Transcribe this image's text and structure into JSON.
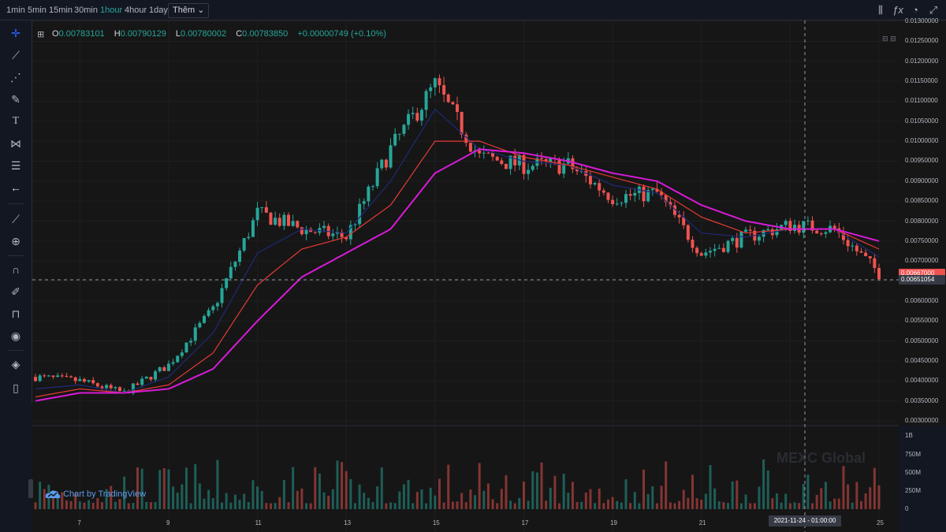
{
  "toolbar": {
    "intervals": [
      "1min",
      "5min",
      "15min",
      "30min",
      "1hour",
      "4hour",
      "1day"
    ],
    "active_interval": "1hour",
    "more_label": "Thêm"
  },
  "ohlc": {
    "o_key": "O",
    "o": "0.00783101",
    "h_key": "H",
    "h": "0.00790129",
    "l_key": "L",
    "l": "0.00780002",
    "c_key": "C",
    "c": "0.00783850",
    "change": "+0.00000749 (+0.10%)"
  },
  "price_axis": {
    "labels": [
      "0.01300000",
      "0.01250000",
      "0.01200000",
      "0.01150000",
      "0.01100000",
      "0.01050000",
      "0.01000000",
      "0.00950000",
      "0.00900000",
      "0.00850000",
      "0.00800000",
      "0.00750000",
      "0.00700000",
      "0.00650000",
      "0.00600000",
      "0.00550000",
      "0.00500000",
      "0.00450000",
      "0.00400000",
      "0.00350000",
      "0.00300000"
    ],
    "current_price": "0.00667000",
    "crosshair_price": "0.00651054"
  },
  "volume_axis": {
    "labels": [
      "1B",
      "750M",
      "500M",
      "250M",
      "0"
    ]
  },
  "time_axis": {
    "labels": [
      "7",
      "9",
      "11",
      "13",
      "15",
      "17",
      "19",
      "21",
      "23",
      "25"
    ],
    "crosshair_date": "2021-11-24 - 01:00:00"
  },
  "branding": {
    "tradingview": "Chart by TradingView",
    "watermark": "MEXC Global"
  },
  "colors": {
    "up": "#26a69a",
    "down": "#ef5350",
    "ma_fast": "#1e2a78",
    "ma_mid": "#e53935",
    "ma_slow": "#d81bd8",
    "background": "#161616"
  },
  "icons": [
    "crosshair-icon",
    "trend-line-icon",
    "fib-icon",
    "brush-icon",
    "text-icon",
    "pattern-icon",
    "measure-icon",
    "back-arrow-icon",
    "ruler-icon",
    "zoom-in-icon",
    "magnet-icon",
    "lock-drawings-icon",
    "lock-icon",
    "eye-icon",
    "layers-icon",
    "trash-icon"
  ],
  "chart_data": {
    "type": "candlestick",
    "x": [
      "2021-11-06",
      "2021-11-07",
      "2021-11-08",
      "2021-11-09",
      "2021-11-10",
      "2021-11-11",
      "2021-11-12",
      "2021-11-13",
      "2021-11-14",
      "2021-11-15",
      "2021-11-16",
      "2021-11-17",
      "2021-11-18",
      "2021-11-19",
      "2021-11-20",
      "2021-11-21",
      "2021-11-22",
      "2021-11-23",
      "2021-11-24",
      "2021-11-25"
    ],
    "close": [
      0.0041,
      0.004,
      0.0037,
      0.0044,
      0.0058,
      0.0082,
      0.0078,
      0.0076,
      0.0098,
      0.0114,
      0.0096,
      0.0094,
      0.0094,
      0.0086,
      0.0087,
      0.0072,
      0.0076,
      0.0079,
      0.0078,
      0.0067
    ],
    "ma_fast": [
      0.0038,
      0.0039,
      0.0037,
      0.0041,
      0.0052,
      0.0072,
      0.0078,
      0.0077,
      0.009,
      0.0108,
      0.0098,
      0.0095,
      0.0094,
      0.0089,
      0.0087,
      0.0077,
      0.0076,
      0.0078,
      0.0078,
      0.0071
    ],
    "ma_mid": [
      0.0036,
      0.0038,
      0.0037,
      0.0039,
      0.0047,
      0.0064,
      0.0073,
      0.0076,
      0.0084,
      0.01,
      0.01,
      0.0096,
      0.0094,
      0.0091,
      0.0088,
      0.0081,
      0.0077,
      0.0078,
      0.0078,
      0.0073
    ],
    "ma_slow": [
      0.0035,
      0.0037,
      0.0037,
      0.0038,
      0.0043,
      0.0055,
      0.0066,
      0.0072,
      0.0078,
      0.0092,
      0.0098,
      0.0097,
      0.0095,
      0.0092,
      0.009,
      0.0084,
      0.008,
      0.0078,
      0.0078,
      0.0075
    ],
    "ylim": [
      0.003,
      0.013
    ],
    "volume_ylim": [
      0,
      1000000000
    ],
    "grid": true
  }
}
